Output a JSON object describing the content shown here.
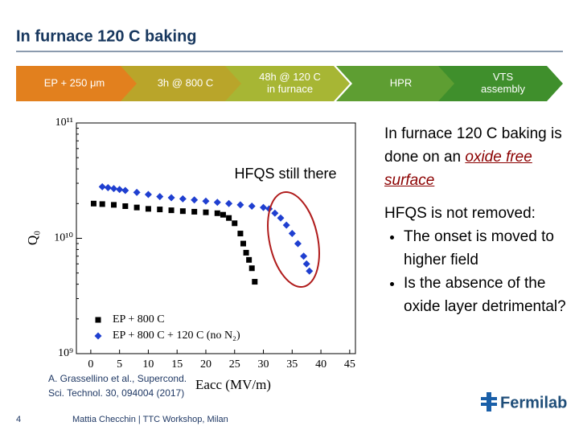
{
  "header": {
    "title": "In furnace 120 C baking"
  },
  "steps": [
    {
      "lines": [
        "EP + 250 μm"
      ],
      "color": "#e2801e"
    },
    {
      "lines": [
        "3h @ 800 C"
      ],
      "color": "#b9a52a"
    },
    {
      "lines": [
        "48h @ 120 C",
        "in furnace"
      ],
      "color": "#a7b634"
    },
    {
      "lines": [
        "HPR"
      ],
      "color": "#5e9e32"
    },
    {
      "lines": [
        "VTS",
        "assembly"
      ],
      "color": "#3f8f2c"
    }
  ],
  "chart_data": {
    "type": "scatter",
    "xlabel": "Eacc (MV/m)",
    "ylabel": "Q₀",
    "annotation": "HFQS still there",
    "xlim": [
      -2.5,
      46
    ],
    "xticks": [
      0,
      5,
      10,
      15,
      20,
      25,
      30,
      35,
      40,
      45
    ],
    "ylim": [
      1000000000,
      100000000000
    ],
    "yticks": [
      {
        "value": 1000000000,
        "label": "10⁹"
      },
      {
        "value": 10000000000,
        "label": "10¹⁰"
      },
      {
        "value": 100000000000,
        "label": "10¹¹"
      }
    ],
    "log_y": true,
    "legend": "lower left",
    "series": [
      {
        "name": "EP + 800 C",
        "color": "#000000",
        "marker": "square",
        "x": [
          0.5,
          2,
          4,
          6,
          8,
          10,
          12,
          14,
          16,
          18,
          20,
          22,
          23,
          24,
          25,
          26,
          26.5,
          27,
          27.5,
          28,
          28.5
        ],
        "values": [
          20000000000,
          19800000000,
          19500000000,
          19000000000,
          18500000000,
          18000000000,
          17800000000,
          17500000000,
          17200000000,
          17000000000,
          16800000000,
          16500000000,
          16000000000,
          15000000000,
          13500000000,
          11000000000,
          9000000000,
          7500000000,
          6500000000,
          5500000000,
          4200000000
        ]
      },
      {
        "name": "EP + 800 C + 120 C (no N₂)",
        "color": "#1f3fd0",
        "marker": "diamond",
        "x": [
          2,
          3,
          4,
          5,
          6,
          8,
          10,
          12,
          14,
          16,
          18,
          20,
          22,
          24,
          26,
          28,
          30,
          31,
          32,
          33,
          34,
          35,
          36,
          37,
          37.5,
          38
        ],
        "values": [
          28000000000,
          27500000000,
          27000000000,
          26500000000,
          26000000000,
          25000000000,
          24000000000,
          23000000000,
          22500000000,
          22000000000,
          21500000000,
          21000000000,
          20500000000,
          20000000000,
          19500000000,
          19000000000,
          18500000000,
          18000000000,
          16500000000,
          15000000000,
          13000000000,
          11000000000,
          9000000000,
          7000000000,
          6000000000,
          5200000000
        ]
      }
    ]
  },
  "citation": [
    "A. Grassellino et al., Supercond.",
    "Sci. Technol. 30, 094004 (2017)"
  ],
  "notes": {
    "para1": {
      "text": "In furnace 120 C baking is done on an ",
      "emphasis": "oxide free surface"
    },
    "para2": "HFQS is not removed:",
    "bullets": [
      "The onset is moved to higher field",
      "Is the absence of the oxide layer detrimental?"
    ]
  },
  "footer": {
    "page": "4",
    "presenter": "Mattia Checchin | TTC Workshop, Milan",
    "logo": "Fermilab"
  }
}
